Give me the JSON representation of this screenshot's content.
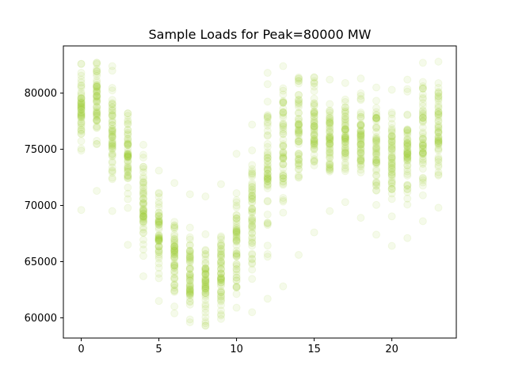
{
  "chart_data": {
    "type": "scatter",
    "title": "Sample Loads for Peak=80000 MW",
    "xlabel": "",
    "ylabel": "",
    "xlim": [
      -1.15,
      24.15
    ],
    "ylim": [
      58200,
      84200
    ],
    "xticks": [
      0,
      5,
      10,
      15,
      20
    ],
    "yticks": [
      60000,
      65000,
      70000,
      75000,
      80000
    ],
    "xtick_labels": [
      "0",
      "5",
      "10",
      "15",
      "20"
    ],
    "ytick_labels": [
      "60000",
      "65000",
      "70000",
      "75000",
      "80000"
    ],
    "grid": false,
    "marker": "circle",
    "marker_color": "#9acd32",
    "marker_alpha": 0.1,
    "hourly_ranges": [
      {
        "hour": 0,
        "min": 69600,
        "max": 82600
      },
      {
        "hour": 1,
        "min": 71300,
        "max": 82700
      },
      {
        "hour": 2,
        "min": 69500,
        "max": 82400
      },
      {
        "hour": 3,
        "min": 66500,
        "max": 78200
      },
      {
        "hour": 4,
        "min": 63700,
        "max": 75400
      },
      {
        "hour": 5,
        "min": 61500,
        "max": 73100
      },
      {
        "hour": 6,
        "min": 60400,
        "max": 72000
      },
      {
        "hour": 7,
        "min": 59600,
        "max": 71000
      },
      {
        "hour": 8,
        "min": 59300,
        "max": 70800
      },
      {
        "hour": 9,
        "min": 59900,
        "max": 71900
      },
      {
        "hour": 10,
        "min": 60900,
        "max": 74600
      },
      {
        "hour": 11,
        "min": 60500,
        "max": 77200
      },
      {
        "hour": 12,
        "min": 61700,
        "max": 81800
      },
      {
        "hour": 13,
        "min": 62800,
        "max": 82400
      },
      {
        "hour": 14,
        "min": 65600,
        "max": 81400
      },
      {
        "hour": 15,
        "min": 67600,
        "max": 81400
      },
      {
        "hour": 16,
        "min": 69500,
        "max": 81200
      },
      {
        "hour": 17,
        "min": 70300,
        "max": 80900
      },
      {
        "hour": 18,
        "min": 68900,
        "max": 81300
      },
      {
        "hour": 19,
        "min": 67400,
        "max": 80500
      },
      {
        "hour": 20,
        "min": 66400,
        "max": 80300
      },
      {
        "hour": 21,
        "min": 67100,
        "max": 81200
      },
      {
        "hour": 22,
        "min": 68600,
        "max": 82700
      },
      {
        "hour": 23,
        "min": 69800,
        "max": 82800
      }
    ],
    "hourly_center": [
      78500,
      79000,
      76800,
      74000,
      70500,
      67500,
      65500,
      64000,
      63200,
      64000,
      66500,
      69500,
      73000,
      74800,
      76000,
      76500,
      76000,
      76200,
      76000,
      75000,
      74000,
      75000,
      76300,
      77000
    ],
    "samples_per_hour": 60
  }
}
